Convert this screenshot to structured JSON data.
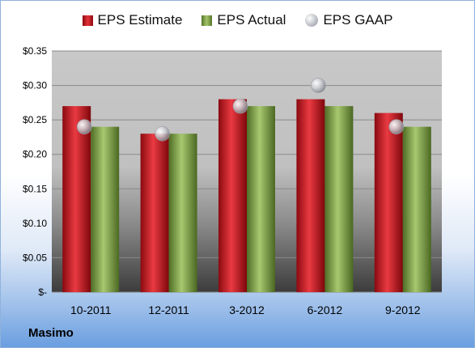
{
  "chart_data": {
    "type": "bar",
    "categories": [
      "10-2011",
      "12-2011",
      "3-2012",
      "6-2012",
      "9-2012"
    ],
    "series": [
      {
        "name": "EPS Estimate",
        "kind": "bar",
        "color": "#c0151d",
        "values": [
          0.27,
          0.23,
          0.28,
          0.28,
          0.26
        ]
      },
      {
        "name": "EPS Actual",
        "kind": "bar",
        "color": "#7f9f45",
        "values": [
          0.24,
          0.23,
          0.27,
          0.27,
          0.24
        ]
      },
      {
        "name": "EPS GAAP",
        "kind": "marker",
        "color": "#b9bcc2",
        "values": [
          0.24,
          0.23,
          0.27,
          0.3,
          0.24
        ]
      }
    ],
    "y_ticks": [
      0,
      0.05,
      0.1,
      0.15,
      0.2,
      0.25,
      0.3,
      0.35
    ],
    "y_tick_labels": [
      "$-",
      "$0.05",
      "$0.10",
      "$0.15",
      "$0.20",
      "$0.25",
      "$0.30",
      "$0.35"
    ],
    "ylim": [
      0,
      0.35
    ],
    "grid": true,
    "legend_position": "top"
  },
  "company_name": "Masimo"
}
